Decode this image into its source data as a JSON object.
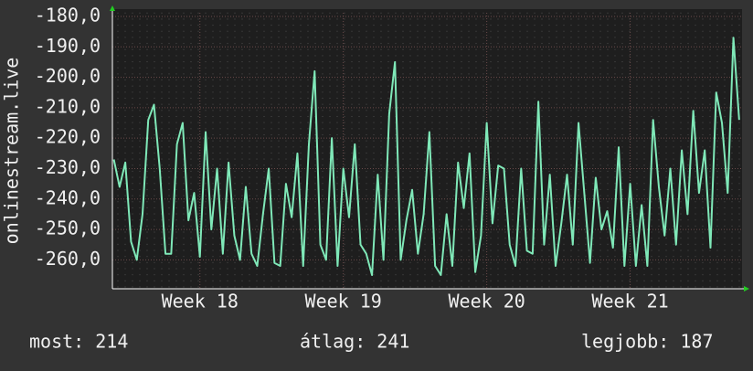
{
  "chart_data": {
    "type": "line",
    "y_label": "onlinestream.live",
    "xlim": [
      17.39,
      21.78
    ],
    "xticks": [
      {
        "value": 18,
        "label": "Week 18"
      },
      {
        "value": 19,
        "label": "Week 19"
      },
      {
        "value": 20,
        "label": "Week 20"
      },
      {
        "value": 21,
        "label": "Week 21"
      }
    ],
    "ylim": [
      -269.5,
      -178.8
    ],
    "yticks": [
      {
        "value": -180,
        "label": "-180,0"
      },
      {
        "value": -190,
        "label": "-190,0"
      },
      {
        "value": -200,
        "label": "-200,0"
      },
      {
        "value": -210,
        "label": "-210,0"
      },
      {
        "value": -220,
        "label": "-220,0"
      },
      {
        "value": -230,
        "label": "-230,0"
      },
      {
        "value": -240,
        "label": "-240,0"
      },
      {
        "value": -250,
        "label": "-250,0"
      },
      {
        "value": -260,
        "label": "-260,0"
      }
    ],
    "grid": true,
    "x": [
      17.4,
      17.44,
      17.48,
      17.52,
      17.56,
      17.6,
      17.64,
      17.68,
      17.72,
      17.76,
      17.8,
      17.84,
      17.88,
      17.92,
      17.96,
      18,
      18.04,
      18.08,
      18.12,
      18.16,
      18.2,
      18.24,
      18.28,
      18.32,
      18.36,
      18.4,
      18.44,
      18.48,
      18.52,
      18.56,
      18.6,
      18.64,
      18.68,
      18.72,
      18.76,
      18.8,
      18.84,
      18.88,
      18.92,
      18.96,
      19,
      19.04,
      19.08,
      19.12,
      19.16,
      19.2,
      19.24,
      19.28,
      19.32,
      19.36,
      19.4,
      19.44,
      19.48,
      19.52,
      19.56,
      19.6,
      19.64,
      19.68,
      19.72,
      19.76,
      19.8,
      19.84,
      19.88,
      19.92,
      19.96,
      20,
      20.04,
      20.08,
      20.12,
      20.16,
      20.2,
      20.24,
      20.28,
      20.32,
      20.36,
      20.4,
      20.44,
      20.48,
      20.52,
      20.56,
      20.6,
      20.64,
      20.68,
      20.72,
      20.76,
      20.8,
      20.84,
      20.88,
      20.92,
      20.96,
      21,
      21.04,
      21.08,
      21.12,
      21.16,
      21.2,
      21.24,
      21.28,
      21.32,
      21.36,
      21.4,
      21.44,
      21.48,
      21.52,
      21.56,
      21.6,
      21.64,
      21.68,
      21.72,
      21.76
    ],
    "series": [
      {
        "color": "#7fe8b8",
        "values": [
          -227,
          -236,
          -228,
          -254,
          -260,
          -245,
          -214,
          -209,
          -230,
          -258,
          -258,
          -222,
          -215,
          -247,
          -238,
          -259,
          -218,
          -250,
          -230,
          -258,
          -228,
          -252,
          -260,
          -236,
          -258,
          -262,
          -245,
          -230,
          -261,
          -262,
          -235,
          -246,
          -225,
          -262,
          -222,
          -198,
          -255,
          -260,
          -220,
          -262,
          -230,
          -246,
          -222,
          -255,
          -258,
          -265,
          -232,
          -260,
          -212,
          -195,
          -260,
          -247,
          -237,
          -258,
          -245,
          -218,
          -262,
          -265,
          -245,
          -262,
          -228,
          -243,
          -225,
          -264,
          -252,
          -215,
          -248,
          -229,
          -230,
          -255,
          -262,
          -230,
          -257,
          -258,
          -208,
          -255,
          -232,
          -262,
          -248,
          -232,
          -255,
          -215,
          -238,
          -261,
          -233,
          -250,
          -244,
          -256,
          -223,
          -262,
          -235,
          -262,
          -242,
          -262,
          -214,
          -236,
          -252,
          -230,
          -255,
          -224,
          -245,
          -211,
          -238,
          -224,
          -256,
          -205,
          -215,
          -238,
          -187,
          -214
        ]
      }
    ],
    "footer": [
      "most: 214",
      "átlag: 241",
      "legjobb: 187"
    ]
  }
}
